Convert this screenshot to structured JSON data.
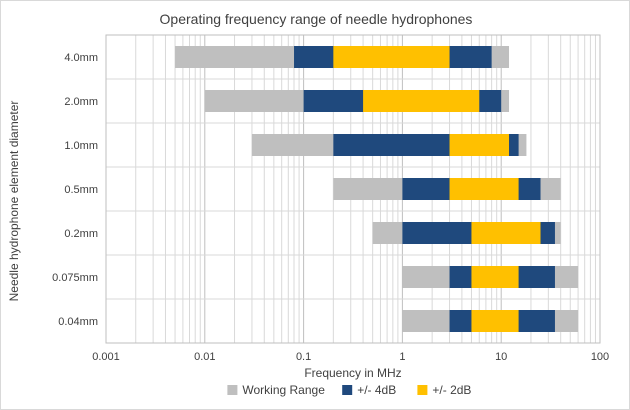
{
  "chart_data": {
    "type": "bar",
    "orientation": "horizontal-range",
    "title": "Operating frequency range of needle hydrophones",
    "xlabel": "Frequency in MHz",
    "ylabel": "Needle hydrophone element  diameter",
    "x_scale": "log",
    "xlim": [
      0.001,
      100
    ],
    "x_ticks": [
      "0.001",
      "0.01",
      "0.1",
      "1",
      "10",
      "100"
    ],
    "grid": true,
    "legend_position": "bottom",
    "categories": [
      "4.0mm",
      "2.0mm",
      "1.0mm",
      "0.5mm",
      "0.2mm",
      "0.075mm",
      "0.04mm"
    ],
    "series": [
      {
        "name": "Working Range",
        "color": "#bfbfbf",
        "ranges": [
          [
            0.005,
            12
          ],
          [
            0.01,
            12
          ],
          [
            0.03,
            18
          ],
          [
            0.2,
            40
          ],
          [
            0.5,
            40
          ],
          [
            1,
            60
          ],
          [
            1,
            60
          ]
        ]
      },
      {
        "name": "+/- 4dB",
        "color": "#1f497d",
        "ranges": [
          [
            0.08,
            8
          ],
          [
            0.1,
            10
          ],
          [
            0.2,
            15
          ],
          [
            1,
            25
          ],
          [
            1,
            35
          ],
          [
            3,
            35
          ],
          [
            3,
            35
          ]
        ]
      },
      {
        "name": "+/- 2dB",
        "color": "#ffc000",
        "ranges": [
          [
            0.2,
            3
          ],
          [
            0.4,
            6
          ],
          [
            3,
            12
          ],
          [
            3,
            15
          ],
          [
            5,
            25
          ],
          [
            5,
            15
          ],
          [
            5,
            15
          ]
        ]
      }
    ]
  }
}
